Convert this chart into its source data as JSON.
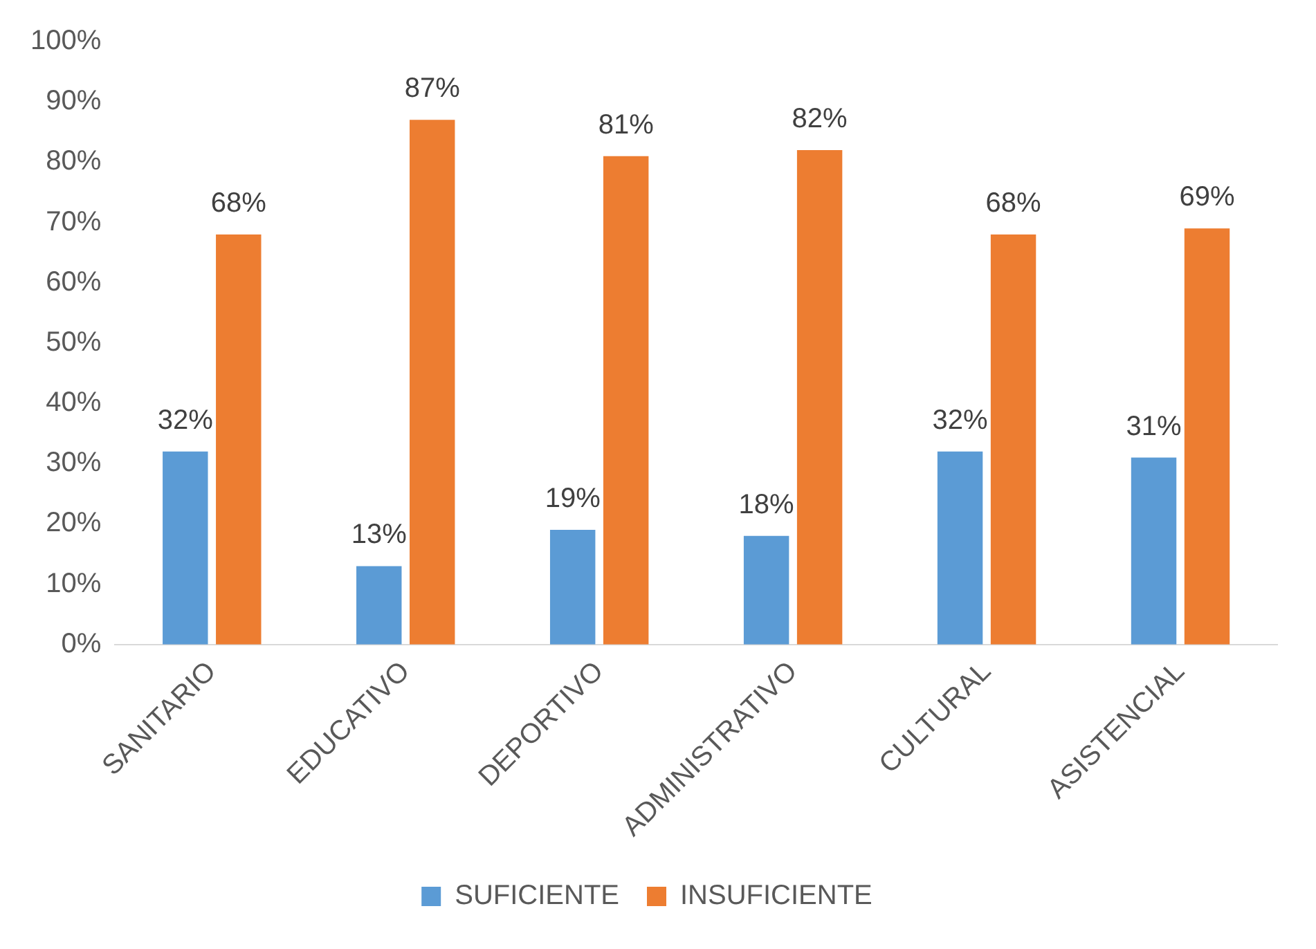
{
  "chart_data": {
    "type": "bar",
    "categories": [
      "SANITARIO",
      "EDUCATIVO",
      "DEPORTIVO",
      "ADMINISTRATIVO",
      "CULTURAL",
      "ASISTENCIAL"
    ],
    "series": [
      {
        "name": "SUFICIENTE",
        "color": "#5b9bd5",
        "values": [
          32,
          13,
          19,
          18,
          32,
          31
        ],
        "value_labels": [
          "32%",
          "13%",
          "19%",
          "18%",
          "32%",
          "31%"
        ]
      },
      {
        "name": "INSUFICIENTE",
        "color": "#ed7d31",
        "values": [
          68,
          87,
          81,
          82,
          68,
          69
        ],
        "value_labels": [
          "68%",
          "87%",
          "81%",
          "82%",
          "68%",
          "69%"
        ]
      }
    ],
    "ylim": [
      0,
      100
    ],
    "yticks": [
      {
        "value": 0,
        "label": "0%"
      },
      {
        "value": 10,
        "label": "10%"
      },
      {
        "value": 20,
        "label": "20%"
      },
      {
        "value": 30,
        "label": "30%"
      },
      {
        "value": 40,
        "label": "40%"
      },
      {
        "value": 50,
        "label": "50%"
      },
      {
        "value": 60,
        "label": "60%"
      },
      {
        "value": 70,
        "label": "70%"
      },
      {
        "value": 80,
        "label": "80%"
      },
      {
        "value": 90,
        "label": "90%"
      },
      {
        "value": 100,
        "label": "100%"
      }
    ],
    "grid": false,
    "legend": "bottom"
  }
}
